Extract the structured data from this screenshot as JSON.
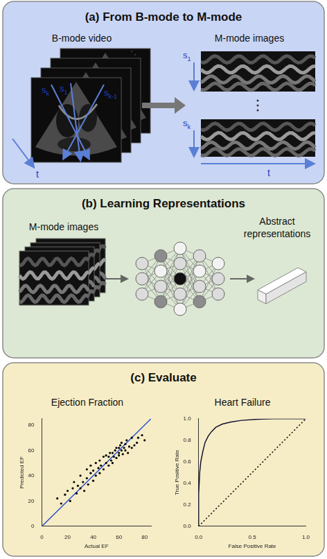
{
  "panels": [
    {
      "title": "(a) From B-mode to M-mode",
      "left_label": "B-mode video",
      "right_label": "M-mode images",
      "scan_lines": [
        {
          "base": "s",
          "sub": "k"
        },
        {
          "base": "s",
          "sub": "1"
        },
        {
          "base": "s",
          "sub": "k-1"
        }
      ],
      "mmode_labels": [
        {
          "base": "s",
          "sub": "1"
        },
        {
          "base": "s",
          "sub": "k"
        }
      ],
      "time_label": "t"
    },
    {
      "title": "(b) Learning Representations",
      "left_label": "M-mode images",
      "right_label": [
        "Abstract",
        "representations"
      ]
    },
    {
      "title": "(c) Evaluate"
    }
  ],
  "chart_data": [
    {
      "type": "scatter",
      "title": "Ejection Fraction",
      "x_label": "Actual EF",
      "y_label": "Predicted EF",
      "grid": false,
      "xlim": [
        0,
        85
      ],
      "ylim": [
        0,
        85
      ],
      "xticks": [
        0,
        20,
        40,
        60,
        80
      ],
      "yticks": [
        0,
        20,
        40,
        60,
        80
      ],
      "series": [
        {
          "type": "scatter",
          "marker": "circle",
          "color": "#000000",
          "x": [
            12,
            15,
            18,
            20,
            22,
            24,
            25,
            27,
            28,
            30,
            30,
            32,
            33,
            35,
            35,
            36,
            38,
            38,
            40,
            40,
            42,
            42,
            44,
            45,
            45,
            46,
            48,
            48,
            50,
            50,
            52,
            52,
            53,
            54,
            55,
            55,
            56,
            57,
            58,
            58,
            60,
            60,
            60,
            61,
            62,
            62,
            63,
            64,
            65,
            65,
            66,
            67,
            68,
            70,
            70,
            72,
            74,
            75,
            78,
            80
          ],
          "values": [
            22,
            18,
            25,
            28,
            20,
            30,
            35,
            26,
            32,
            30,
            40,
            35,
            28,
            38,
            45,
            33,
            42,
            48,
            36,
            44,
            40,
            50,
            46,
            42,
            52,
            48,
            45,
            55,
            50,
            56,
            48,
            55,
            58,
            52,
            50,
            58,
            55,
            60,
            54,
            62,
            58,
            62,
            56,
            64,
            60,
            66,
            57,
            62,
            60,
            65,
            68,
            58,
            63,
            62,
            70,
            64,
            66,
            70,
            72,
            68
          ]
        },
        {
          "type": "line",
          "line_style": "solid",
          "color": "#2b4fd0",
          "x": [
            0,
            85
          ],
          "values": [
            0,
            85
          ]
        }
      ]
    },
    {
      "type": "line",
      "title": "Heart Failure",
      "x_label": "False Positive Rate",
      "y_label": "True Positive Rate",
      "grid": false,
      "xlim": [
        0,
        1
      ],
      "ylim": [
        0,
        1
      ],
      "xticks": [
        {
          "value": 0,
          "label": "0.0"
        },
        {
          "value": 0.5,
          "label": "0.5"
        },
        {
          "value": 1,
          "label": "1.0"
        }
      ],
      "yticks": [
        {
          "value": 0,
          "label": "0.0"
        },
        {
          "value": 0.2,
          "label": "0.2"
        },
        {
          "value": 0.4,
          "label": "0.4"
        },
        {
          "value": 0.6,
          "label": "0.6"
        },
        {
          "value": 0.8,
          "label": "0.8"
        },
        {
          "value": 1,
          "label": "1.0"
        }
      ],
      "series": [
        {
          "type": "line",
          "line_style": "solid",
          "color": "#111133",
          "x": [
            0,
            0,
            0.01,
            0.02,
            0.04,
            0.06,
            0.09,
            0.12,
            0.16,
            0.22,
            0.3,
            0.4,
            0.55,
            0.7,
            1
          ],
          "values": [
            0,
            0.3,
            0.5,
            0.6,
            0.7,
            0.78,
            0.84,
            0.88,
            0.92,
            0.95,
            0.97,
            0.985,
            0.995,
            1,
            1
          ]
        },
        {
          "type": "line",
          "line_style": "dotted",
          "color": "#000000",
          "x": [
            0,
            1
          ],
          "values": [
            0,
            1
          ]
        }
      ]
    }
  ]
}
